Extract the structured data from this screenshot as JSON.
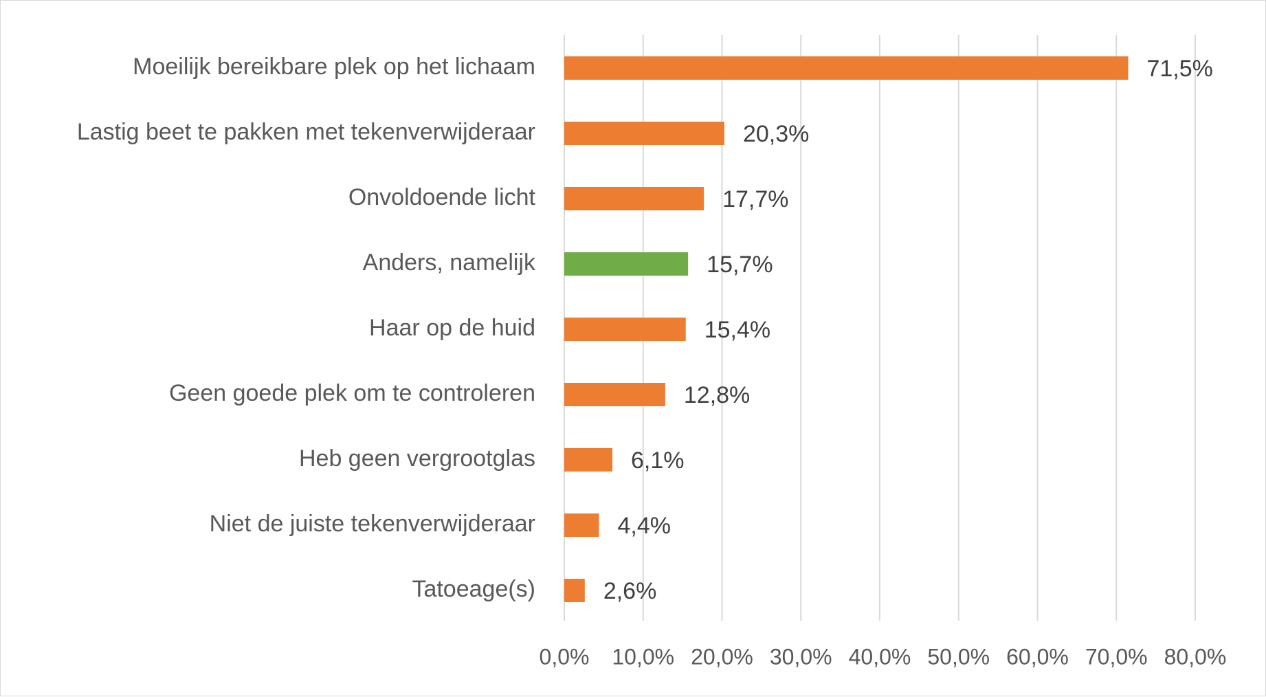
{
  "chart_data": {
    "type": "bar",
    "orientation": "horizontal",
    "categories": [
      "Moeilijk bereikbare plek op het lichaam",
      "Lastig beet te pakken met tekenverwijderaar",
      "Onvoldoende licht",
      "Anders, namelijk",
      "Haar op de huid",
      "Geen goede plek om te controleren",
      "Heb geen vergrootglas",
      "Niet de juiste tekenverwijderaar",
      "Tatoeage(s)"
    ],
    "values": [
      71.5,
      20.3,
      17.7,
      15.7,
      15.4,
      12.8,
      6.1,
      4.4,
      2.6
    ],
    "value_labels": [
      "71,5%",
      "20,3%",
      "17,7%",
      "15,7%",
      "15,4%",
      "12,8%",
      "6,1%",
      "4,4%",
      "2,6%"
    ],
    "bar_colors": [
      "#ed7d31",
      "#ed7d31",
      "#ed7d31",
      "#70ad47",
      "#ed7d31",
      "#ed7d31",
      "#ed7d31",
      "#ed7d31",
      "#ed7d31"
    ],
    "xlim": [
      0,
      80
    ],
    "xticks": [
      0,
      10,
      20,
      30,
      40,
      50,
      60,
      70,
      80
    ],
    "xtick_labels": [
      "0,0%",
      "10,0%",
      "20,0%",
      "30,0%",
      "40,0%",
      "50,0%",
      "60,0%",
      "70,0%",
      "80,0%"
    ],
    "grid": "vertical",
    "legend": "none",
    "gridline_color": "#d9d9d9"
  }
}
